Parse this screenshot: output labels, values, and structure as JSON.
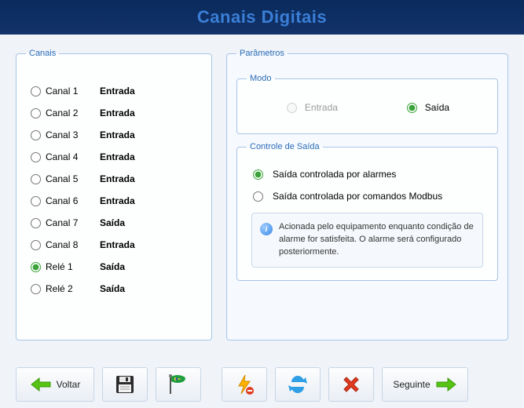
{
  "header": {
    "title": "Canais Digitais"
  },
  "canais": {
    "legend": "Canais",
    "items": [
      {
        "label": "Canal 1",
        "state": "Entrada",
        "selected": false
      },
      {
        "label": "Canal 2",
        "state": "Entrada",
        "selected": false
      },
      {
        "label": "Canal 3",
        "state": "Entrada",
        "selected": false
      },
      {
        "label": "Canal 4",
        "state": "Entrada",
        "selected": false
      },
      {
        "label": "Canal 5",
        "state": "Entrada",
        "selected": false
      },
      {
        "label": "Canal 6",
        "state": "Entrada",
        "selected": false
      },
      {
        "label": "Canal 7",
        "state": "Saída",
        "selected": false
      },
      {
        "label": "Canal 8",
        "state": "Entrada",
        "selected": false
      },
      {
        "label": "Relé 1",
        "state": "Saída",
        "selected": true
      },
      {
        "label": "Relé 2",
        "state": "Saída",
        "selected": false
      }
    ]
  },
  "parametros": {
    "legend": "Parâmetros",
    "modo": {
      "legend": "Modo",
      "entrada_label": "Entrada",
      "saida_label": "Saída",
      "selected": "saida",
      "entrada_disabled": true
    },
    "controle": {
      "legend": "Controle de Saída",
      "opt_alarme": "Saída controlada por alarmes",
      "opt_modbus": "Saída controlada por comandos Modbus",
      "selected": "alarme",
      "info": "Acionada pelo equipamento enquanto condição de alarme for satisfeita. O alarme será configurado posteriormente."
    }
  },
  "toolbar": {
    "voltar": "Voltar",
    "seguinte": "Seguinte"
  },
  "colors": {
    "header_bg": "#0f2f63",
    "title": "#3b7fd6",
    "legend": "#2a6db8",
    "border": "#a9c5e8",
    "green_arrow": "#57c314",
    "save_dark": "#2b2b2b",
    "flag_green": "#1e9e3e",
    "flag_yellow": "#ffd23a",
    "bolt": "#ffb300",
    "refresh": "#2f9fe6",
    "cancel": "#e23b1f"
  }
}
